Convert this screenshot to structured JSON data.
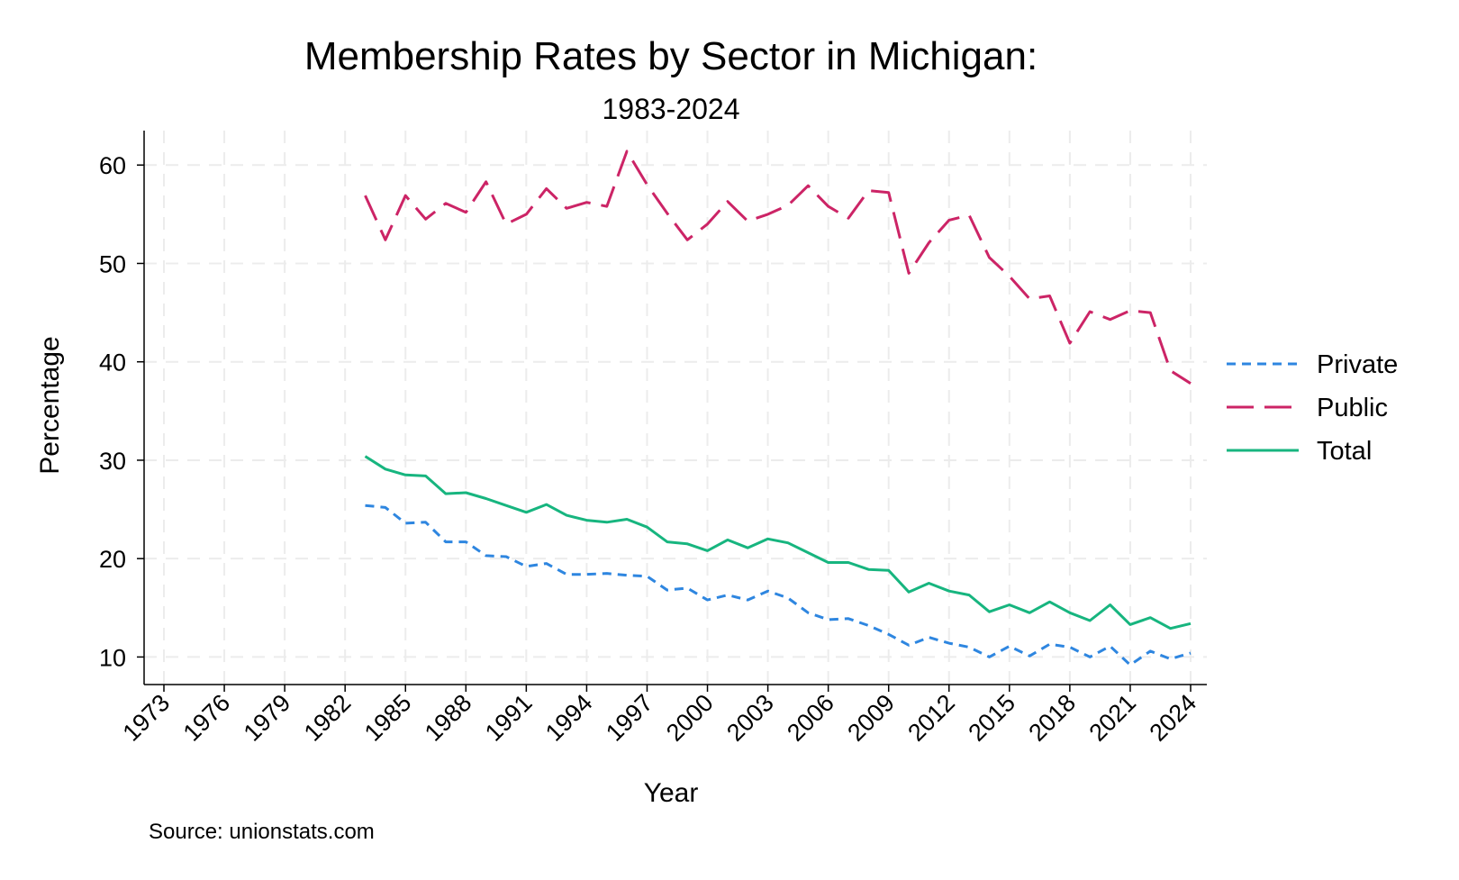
{
  "chart_data": {
    "type": "line",
    "title": "Membership Rates by Sector in Michigan:",
    "subtitle": "1983-2024",
    "xlabel": "Year",
    "ylabel": "Percentage",
    "source": "Source: unionstats.com",
    "xlim": [
      1973,
      2024
    ],
    "ylim": [
      7.2,
      63.5
    ],
    "x_ticks": [
      "1973",
      "1976",
      "1979",
      "1982",
      "1985",
      "1988",
      "1991",
      "1994",
      "1997",
      "2000",
      "2003",
      "2006",
      "2009",
      "2012",
      "2015",
      "2018",
      "2021",
      "2024"
    ],
    "y_ticks": [
      "10",
      "20",
      "30",
      "40",
      "50",
      "60"
    ],
    "grid": true,
    "legend_position": "right",
    "x": [
      1983,
      1984,
      1985,
      1986,
      1987,
      1988,
      1989,
      1990,
      1991,
      1992,
      1993,
      1994,
      1995,
      1996,
      1997,
      1998,
      1999,
      2000,
      2001,
      2002,
      2003,
      2004,
      2005,
      2006,
      2007,
      2008,
      2009,
      2010,
      2011,
      2012,
      2013,
      2014,
      2015,
      2016,
      2017,
      2018,
      2019,
      2020,
      2021,
      2022,
      2023,
      2024
    ],
    "series": [
      {
        "name": "Private",
        "color": "#2e86e0",
        "dash": "dashed",
        "values": [
          25.4,
          25.2,
          23.6,
          23.7,
          21.7,
          21.7,
          20.3,
          20.2,
          19.2,
          19.5,
          18.4,
          18.4,
          18.5,
          18.3,
          18.2,
          16.8,
          17.0,
          15.8,
          16.3,
          15.8,
          16.7,
          16.0,
          14.5,
          13.8,
          13.9,
          13.2,
          12.3,
          11.2,
          12.0,
          11.4,
          11.0,
          10.0,
          11.1,
          10.1,
          11.3,
          11.0,
          10.0,
          11.1,
          9.2,
          10.6,
          9.8,
          10.4
        ]
      },
      {
        "name": "Public",
        "color": "#cc2466",
        "dash": "longdash",
        "values": [
          56.9,
          52.4,
          56.9,
          54.5,
          56.1,
          55.2,
          58.3,
          54.0,
          55.0,
          57.6,
          55.6,
          56.2,
          55.8,
          61.4,
          58.0,
          55.1,
          52.4,
          54.0,
          56.3,
          54.3,
          55.0,
          55.9,
          57.9,
          55.8,
          54.6,
          57.4,
          57.2,
          49.0,
          52.1,
          54.4,
          54.9,
          50.6,
          48.7,
          46.4,
          46.7,
          41.9,
          45.1,
          44.3,
          45.2,
          45.0,
          39.1,
          37.8
        ]
      },
      {
        "name": "Total",
        "color": "#17b57f",
        "dash": "solid",
        "values": [
          30.4,
          29.1,
          28.5,
          28.4,
          26.6,
          26.7,
          26.1,
          25.4,
          24.7,
          25.5,
          24.4,
          23.9,
          23.7,
          24.0,
          23.2,
          21.7,
          21.5,
          20.8,
          21.9,
          21.1,
          22.0,
          21.6,
          20.6,
          19.6,
          19.6,
          18.9,
          18.8,
          16.6,
          17.5,
          16.7,
          16.3,
          14.6,
          15.3,
          14.5,
          15.6,
          14.5,
          13.7,
          15.3,
          13.3,
          14.0,
          12.9,
          13.4
        ]
      }
    ]
  }
}
